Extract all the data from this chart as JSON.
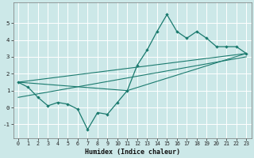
{
  "xlabel": "Humidex (Indice chaleur)",
  "ylabel": "",
  "background_color": "#cce8e8",
  "grid_color": "#ffffff",
  "line_color": "#1a7a6e",
  "xlim": [
    -0.5,
    23.5
  ],
  "ylim": [
    -1.8,
    6.2
  ],
  "yticks": [
    -1,
    0,
    1,
    2,
    3,
    4,
    5
  ],
  "xticks": [
    0,
    1,
    2,
    3,
    4,
    5,
    6,
    7,
    8,
    9,
    10,
    11,
    12,
    13,
    14,
    15,
    16,
    17,
    18,
    19,
    20,
    21,
    22,
    23
  ],
  "main_line_x": [
    0,
    1,
    2,
    3,
    4,
    5,
    6,
    7,
    8,
    9,
    10,
    11,
    12,
    13,
    14,
    15,
    16,
    17,
    18,
    19,
    20,
    21,
    22,
    23
  ],
  "main_line_y": [
    1.5,
    1.2,
    0.6,
    0.1,
    0.3,
    0.2,
    -0.1,
    -1.3,
    -0.3,
    -0.4,
    0.3,
    1.0,
    2.5,
    3.4,
    4.5,
    5.5,
    4.5,
    4.1,
    4.5,
    4.1,
    3.6,
    3.6,
    3.6,
    3.2
  ],
  "line2_x": [
    0,
    23
  ],
  "line2_y": [
    1.5,
    3.2
  ],
  "line3_x": [
    0,
    11,
    23
  ],
  "line3_y": [
    1.5,
    1.0,
    3.2
  ],
  "line4_x": [
    0,
    23
  ],
  "line4_y": [
    0.6,
    3.0
  ],
  "xlabel_fontsize": 6,
  "tick_fontsize": 4.8,
  "linewidth": 0.9,
  "marker_size": 2.2
}
